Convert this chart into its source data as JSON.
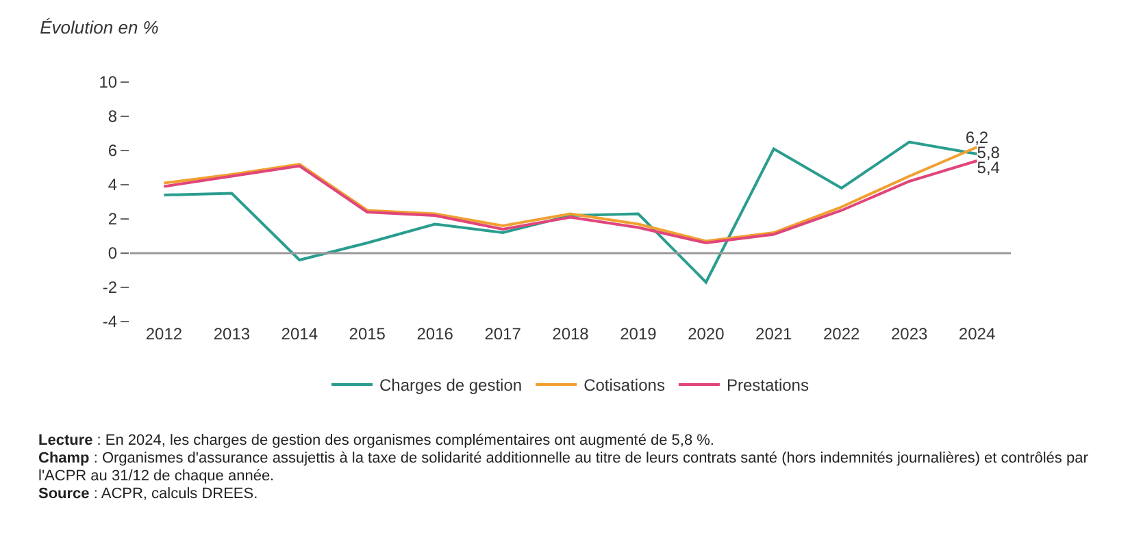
{
  "chart_data": {
    "type": "line",
    "title": "Évolution en %",
    "categories": [
      "2012",
      "2013",
      "2014",
      "2015",
      "2016",
      "2017",
      "2018",
      "2019",
      "2020",
      "2021",
      "2022",
      "2023",
      "2024"
    ],
    "series": [
      {
        "name": "Charges de gestion",
        "color": "#2a9d8f",
        "values": [
          3.4,
          3.5,
          -0.4,
          0.6,
          1.7,
          1.2,
          2.2,
          2.3,
          -1.7,
          6.1,
          3.8,
          6.5,
          5.8
        ],
        "value_labels": [
          null,
          null,
          null,
          null,
          null,
          null,
          null,
          null,
          null,
          null,
          null,
          null,
          "5,8"
        ]
      },
      {
        "name": "Cotisations",
        "color": "#f0a030",
        "values": [
          4.1,
          4.6,
          5.2,
          2.5,
          2.3,
          1.6,
          2.3,
          1.7,
          0.7,
          1.2,
          2.7,
          4.5,
          6.2
        ],
        "value_labels": [
          null,
          null,
          null,
          null,
          null,
          null,
          null,
          null,
          null,
          null,
          null,
          null,
          "6,2"
        ]
      },
      {
        "name": "Prestations",
        "color": "#e0457b",
        "values": [
          3.9,
          4.5,
          5.1,
          2.4,
          2.2,
          1.4,
          2.1,
          1.5,
          0.6,
          1.1,
          2.5,
          4.2,
          5.4
        ],
        "value_labels": [
          null,
          null,
          null,
          null,
          null,
          null,
          null,
          null,
          null,
          null,
          null,
          null,
          "5,4"
        ]
      }
    ],
    "ylim": [
      -4,
      10
    ],
    "yticks": [
      -4,
      -2,
      0,
      2,
      4,
      6,
      8,
      10
    ],
    "grid": false,
    "legend": "bottom",
    "marker": "none",
    "line_style": "solid",
    "ref_lines": [
      {
        "axis": "y",
        "value": 0,
        "color": "#999999"
      }
    ],
    "annotations": [
      "Lecture : En 2024, les charges de gestion des organismes complémentaires ont augmenté de 5,8 %.",
      "Champ : Organismes d'assurance assujettis à la taxe de solidarité additionnelle au titre de leurs contrats santé (hors indemnités journalières) et contrôlés par l'ACPR au 31/12 de chaque année.",
      "Source : ACPR, calculs DREES."
    ]
  }
}
